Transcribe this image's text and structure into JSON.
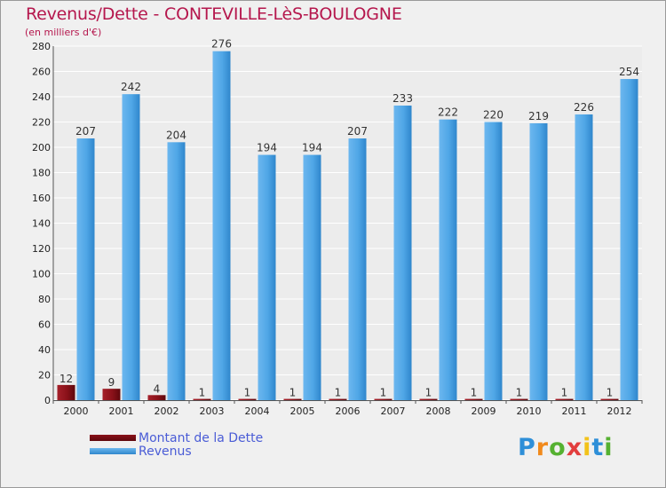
{
  "chart_data": {
    "type": "bar",
    "title": "Revenus/Dette - CONTEVILLE-LèS-BOULOGNE",
    "subtitle": "(en milliers d'€)",
    "xlabel": "",
    "ylabel": "",
    "ylim": [
      0,
      280
    ],
    "yticks": [
      0,
      20,
      40,
      60,
      80,
      100,
      120,
      140,
      160,
      180,
      200,
      220,
      240,
      260,
      280
    ],
    "grid": true,
    "categories": [
      "2000",
      "2001",
      "2002",
      "2003",
      "2004",
      "2005",
      "2006",
      "2007",
      "2008",
      "2009",
      "2010",
      "2011",
      "2012"
    ],
    "series": [
      {
        "name": "Montant de la Dette",
        "color": "#7a0d12",
        "values": [
          12,
          9,
          4,
          1,
          1,
          1,
          1,
          1,
          1,
          1,
          1,
          1,
          1
        ]
      },
      {
        "name": "Revenus",
        "color": "#3d9be0",
        "values": [
          207,
          242,
          204,
          276,
          194,
          194,
          207,
          233,
          222,
          220,
          219,
          226,
          254
        ]
      }
    ],
    "legend_position": "bottom-left"
  },
  "logo": {
    "letters": [
      "P",
      "r",
      "o",
      "x",
      "i",
      "t",
      "i"
    ],
    "colors": [
      "#2e8fd8",
      "#f18a1c",
      "#55b131",
      "#e23d3d",
      "#f2c21b",
      "#2e8fd8",
      "#55b131"
    ]
  }
}
